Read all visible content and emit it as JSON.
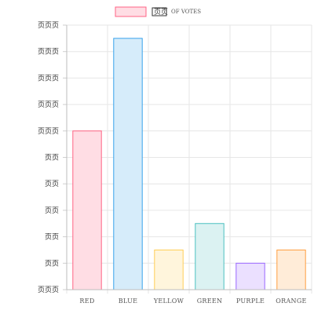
{
  "chart_data": {
    "type": "bar",
    "categories": [
      "RED",
      "BLUE",
      "YELLOW",
      "GREEN",
      "PURPLE",
      "ORANGE"
    ],
    "series": [
      {
        "legend_glyphs": "⻚⻚",
        "legend_text": "OF VOTES",
        "values": [
          12,
          19,
          3,
          5,
          2,
          3
        ],
        "fill_colors": [
          "#ffdde4",
          "#d6ecfa",
          "#fff5dc",
          "#dbf2f2",
          "#ebe0ff",
          "#ffecd8"
        ],
        "border_colors": [
          "#ff6384",
          "#36a2eb",
          "#ffce56",
          "#4bc0c0",
          "#9966ff",
          "#ff9f40"
        ]
      }
    ],
    "yticks": [
      "⻚⻚⻚",
      "⻚⻚",
      "⻚⻚",
      "⻚⻚",
      "⻚⻚",
      "⻚⻚",
      "⻚⻚⻚",
      "⻚⻚⻚",
      "⻚⻚⻚",
      "⻚⻚⻚",
      "⻚⻚⻚"
    ],
    "ylim": [
      0,
      20
    ],
    "grid": true,
    "legend_position": "top"
  }
}
